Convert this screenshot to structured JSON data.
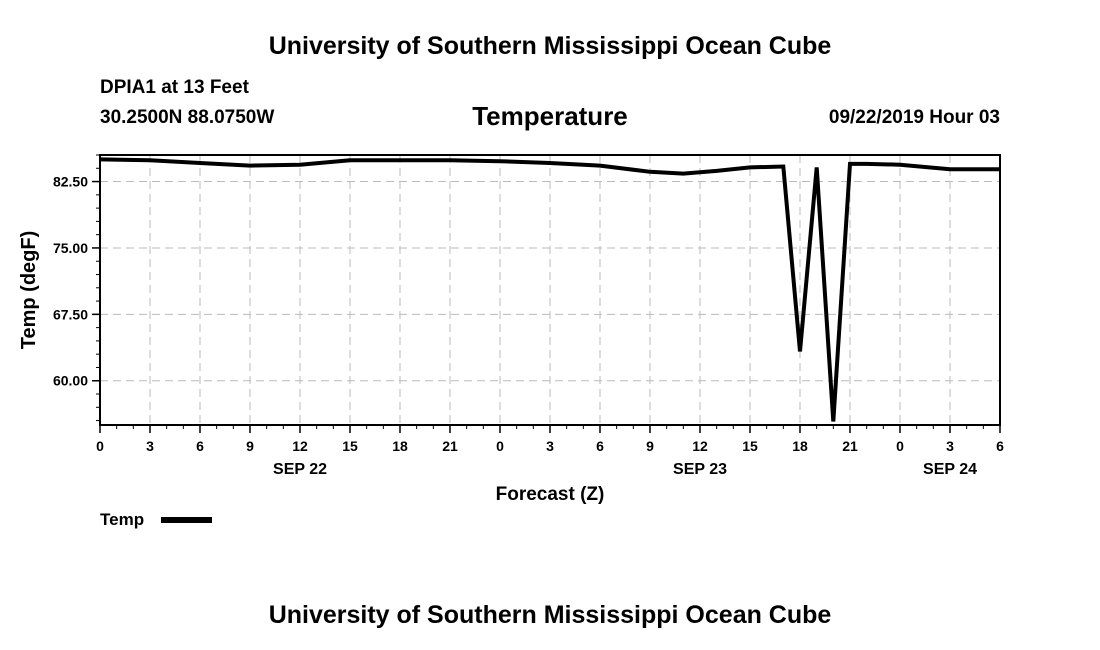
{
  "header": {
    "title": "University of Southern Mississippi Ocean Cube",
    "station": "DPIA1 at 13 Feet",
    "coords": "30.2500N 88.0750W",
    "chart_title": "Temperature",
    "timestamp": "09/22/2019 Hour 03"
  },
  "footer": {
    "title": "University of Southern Mississippi Ocean Cube"
  },
  "legend": {
    "label": "Temp"
  },
  "colors": {
    "line": "#000000",
    "grid": "#bbbbbb"
  },
  "chart_data": {
    "type": "line",
    "title": "Temperature",
    "xlabel": "Forecast (Z)",
    "ylabel": "Temp (degF)",
    "xlim": [
      0,
      54
    ],
    "ylim": [
      55,
      85.5
    ],
    "yticks": [
      60,
      67.5,
      75,
      82.5
    ],
    "ytick_labels": [
      "60.00",
      "67.50",
      "75.00",
      "82.50"
    ],
    "xtick_labels": [
      "0",
      "3",
      "6",
      "9",
      "12",
      "15",
      "18",
      "21",
      "0",
      "3",
      "6",
      "9",
      "12",
      "15",
      "18",
      "21",
      "0",
      "3",
      "6"
    ],
    "date_labels": [
      {
        "label": "SEP 22",
        "x": 12
      },
      {
        "label": "SEP 23",
        "x": 36
      },
      {
        "label": "SEP 24",
        "x": 51
      }
    ],
    "grid": true,
    "legend_position": "bottom-left",
    "series": [
      {
        "name": "Temp",
        "x": [
          0,
          3,
          6,
          9,
          12,
          15,
          18,
          21,
          24,
          27,
          30,
          33,
          35,
          37,
          39,
          41,
          42,
          43,
          44,
          45,
          46,
          48,
          51,
          54
        ],
        "y": [
          85.0,
          84.9,
          84.6,
          84.3,
          84.4,
          84.9,
          84.9,
          84.9,
          84.8,
          84.6,
          84.3,
          83.6,
          83.4,
          83.7,
          84.1,
          84.2,
          63.3,
          84.1,
          55.4,
          84.5,
          84.5,
          84.4,
          83.9,
          83.9
        ]
      }
    ]
  }
}
